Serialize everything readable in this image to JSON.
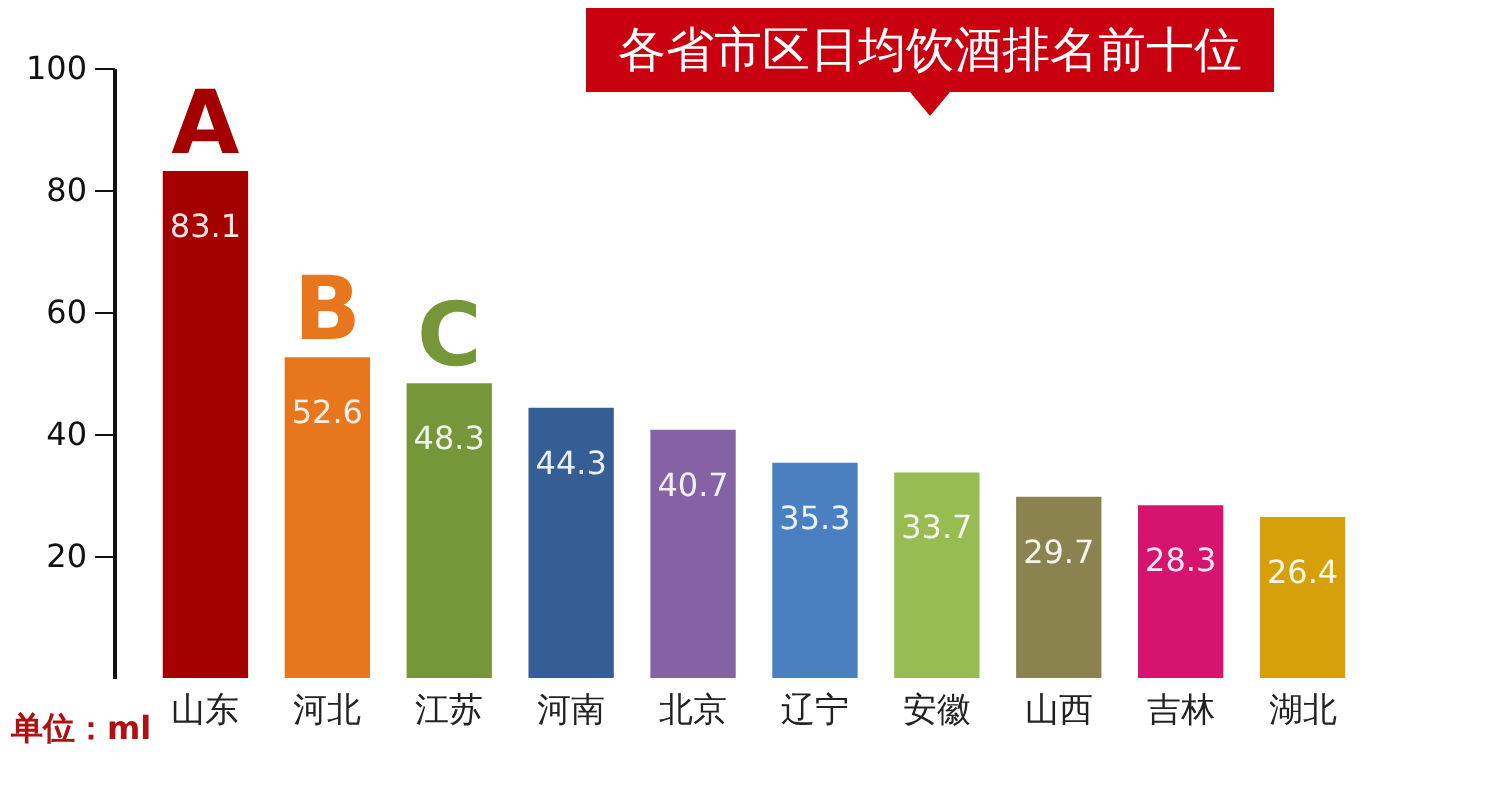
{
  "chart_data": {
    "type": "bar",
    "title": "各省市区日均饮酒排名前十位",
    "ylabel": "单位：ml",
    "categories": [
      "山东",
      "河北",
      "江苏",
      "河南",
      "北京",
      "辽宁",
      "安徽",
      "山西",
      "吉林",
      "湖北"
    ],
    "values": [
      83.1,
      52.6,
      48.3,
      44.3,
      40.7,
      35.3,
      33.7,
      29.7,
      28.3,
      26.4
    ],
    "colors": [
      "#a50000",
      "#e8761c",
      "#76963a",
      "#355f94",
      "#8462a4",
      "#4a7fc0",
      "#96bc52",
      "#8a8350",
      "#d6146f",
      "#d6a00a"
    ],
    "ylim": [
      0,
      100
    ],
    "yticks": [
      20,
      40,
      60,
      80,
      100
    ],
    "data_labels": true,
    "annotations": [
      {
        "text": "A",
        "x": "山东",
        "y": 83.1
      },
      {
        "text": "B",
        "x": "河北",
        "y": 52.6
      },
      {
        "text": "C",
        "x": "江苏",
        "y": 48.3
      }
    ]
  }
}
